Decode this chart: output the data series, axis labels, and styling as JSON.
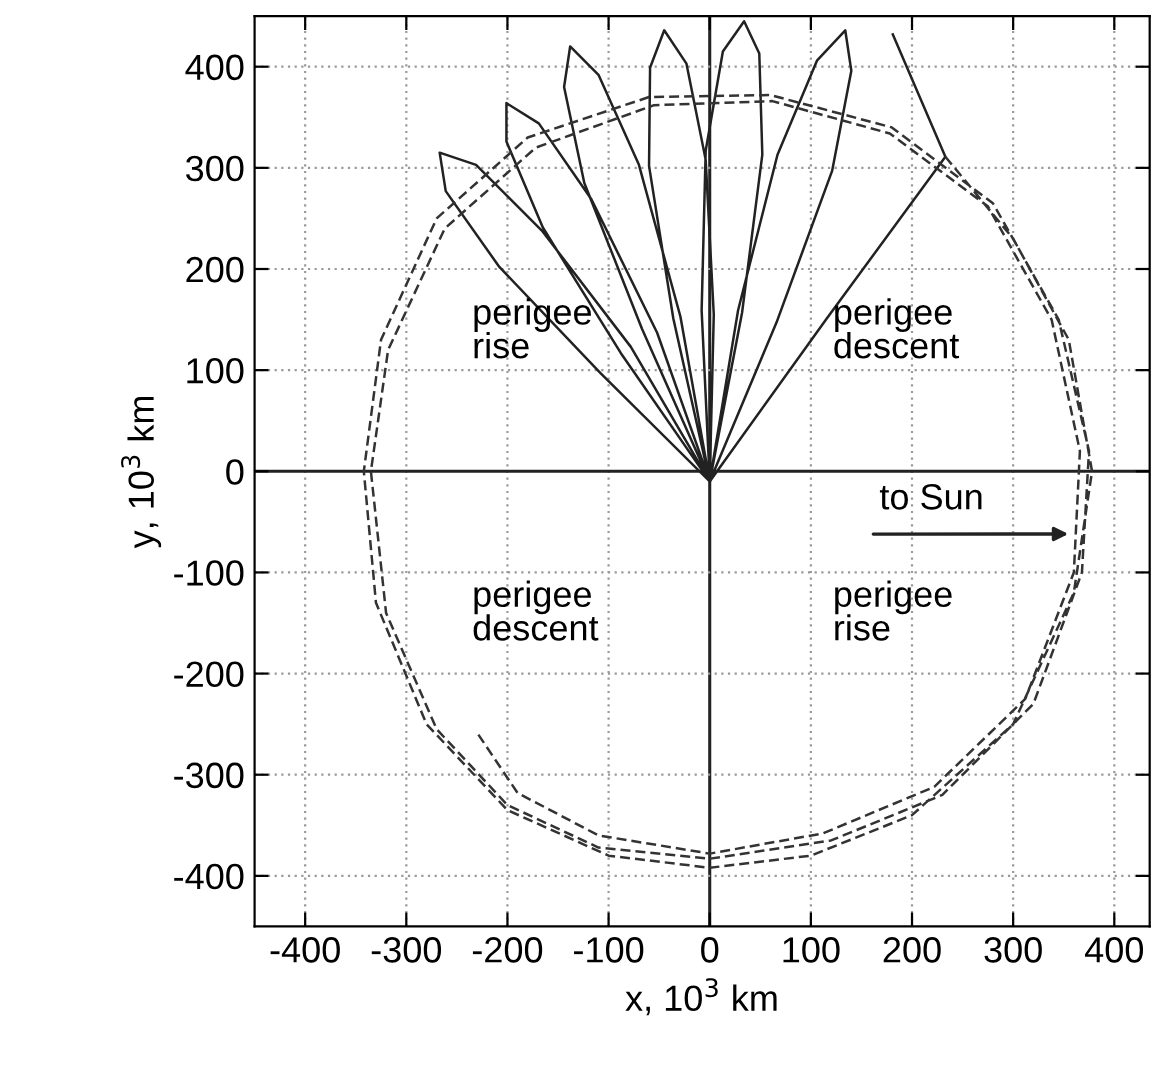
{
  "chart_data": {
    "type": "line",
    "xlabel": "x, 10$^{3}$ km",
    "ylabel": "y, 10$^{3}$ km",
    "xlim": [
      -450,
      435
    ],
    "ylim": [
      -450,
      450
    ],
    "xticks": [
      -400,
      -300,
      -200,
      -100,
      0,
      100,
      200,
      300,
      400
    ],
    "yticks": [
      -400,
      -300,
      -200,
      -100,
      0,
      100,
      200,
      300,
      400
    ],
    "grid": true,
    "legend": false,
    "series": [
      {
        "color": "#222222",
        "line_style": "solid",
        "x": [
          0,
          -108,
          -208,
          -261,
          -267,
          -231,
          -166,
          -78,
          0,
          -88,
          -165,
          -201,
          -201,
          -169,
          -117,
          -52,
          0,
          -67,
          -124,
          -144,
          -138,
          -110,
          -70,
          -29,
          0,
          -36,
          -60,
          -59,
          -45,
          -23,
          -4,
          4,
          0,
          -8,
          -4,
          13,
          34,
          49,
          52,
          32,
          0,
          28,
          67,
          106,
          134,
          140,
          121,
          66,
          0,
          115,
          233,
          181
        ],
        "values": [
          -10,
          97,
          202,
          277,
          315,
          303,
          238,
          123,
          -10,
          117,
          241,
          326,
          364,
          344,
          269,
          137,
          -10,
          141,
          285,
          380,
          420,
          392,
          303,
          153,
          -10,
          151,
          302,
          399,
          436,
          403,
          308,
          155,
          -10,
          159,
          317,
          415,
          445,
          413,
          313,
          157,
          -10,
          159,
          313,
          406,
          436,
          396,
          297,
          147,
          -10,
          150,
          311,
          432
        ]
      },
      {
        "color": "#333333",
        "line_style": "dashed",
        "x": [
          233,
          300,
          355,
          378,
          360,
          300,
          200,
          100,
          0,
          -100,
          -200,
          -280,
          -330,
          -342,
          -325,
          -270,
          -180,
          -60,
          60,
          180,
          280,
          345,
          375,
          368,
          320,
          230,
          120,
          0,
          -110,
          -200,
          -270,
          -320,
          -335,
          -318,
          -262,
          -172,
          -55,
          62,
          178,
          275,
          338,
          366,
          360,
          312,
          222,
          112,
          0,
          -110,
          -190,
          -231
        ],
        "values": [
          311,
          230,
          130,
          0,
          -120,
          -250,
          -340,
          -380,
          -392,
          -380,
          -335,
          -250,
          -130,
          0,
          130,
          250,
          330,
          370,
          372,
          340,
          265,
          150,
          20,
          -100,
          -230,
          -320,
          -365,
          -383,
          -372,
          -330,
          -255,
          -140,
          0,
          120,
          240,
          320,
          362,
          366,
          334,
          262,
          150,
          20,
          -100,
          -225,
          -312,
          -358,
          -378,
          -360,
          -318,
          -257
        ]
      }
    ],
    "annotations": [
      "perigee\nrise",
      "perigee\ndescent",
      "perigee\ndescent",
      "perigee\nrise",
      {
        "text": "to Sun",
        "x": 360,
        "y": -62
      }
    ]
  }
}
